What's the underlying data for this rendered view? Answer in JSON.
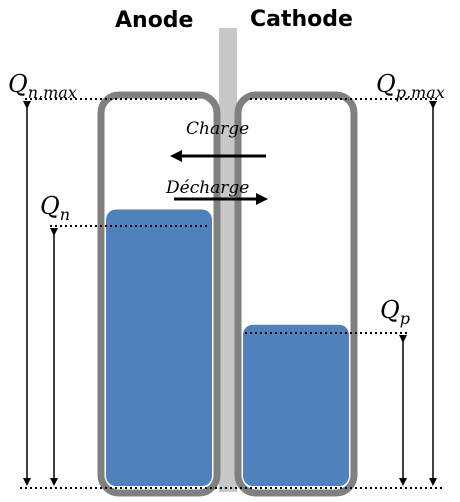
{
  "labels": {
    "anode": "Anode",
    "cathode": "Cathode",
    "charge": "Charge",
    "discharge": "Décharge"
  },
  "quantities": {
    "qn_max": {
      "main": "Q",
      "sub": "n,max"
    },
    "qn": {
      "main": "Q",
      "sub": "n"
    },
    "qp_max": {
      "main": "Q",
      "sub": "p,max"
    },
    "qp": {
      "main": "Q",
      "sub": "p"
    }
  },
  "fill_levels": {
    "anode": 0.72,
    "cathode": 0.42
  },
  "colors": {
    "fill": "#4f81bd",
    "container_stroke": "#808080",
    "separator": "#c8c8c8"
  }
}
